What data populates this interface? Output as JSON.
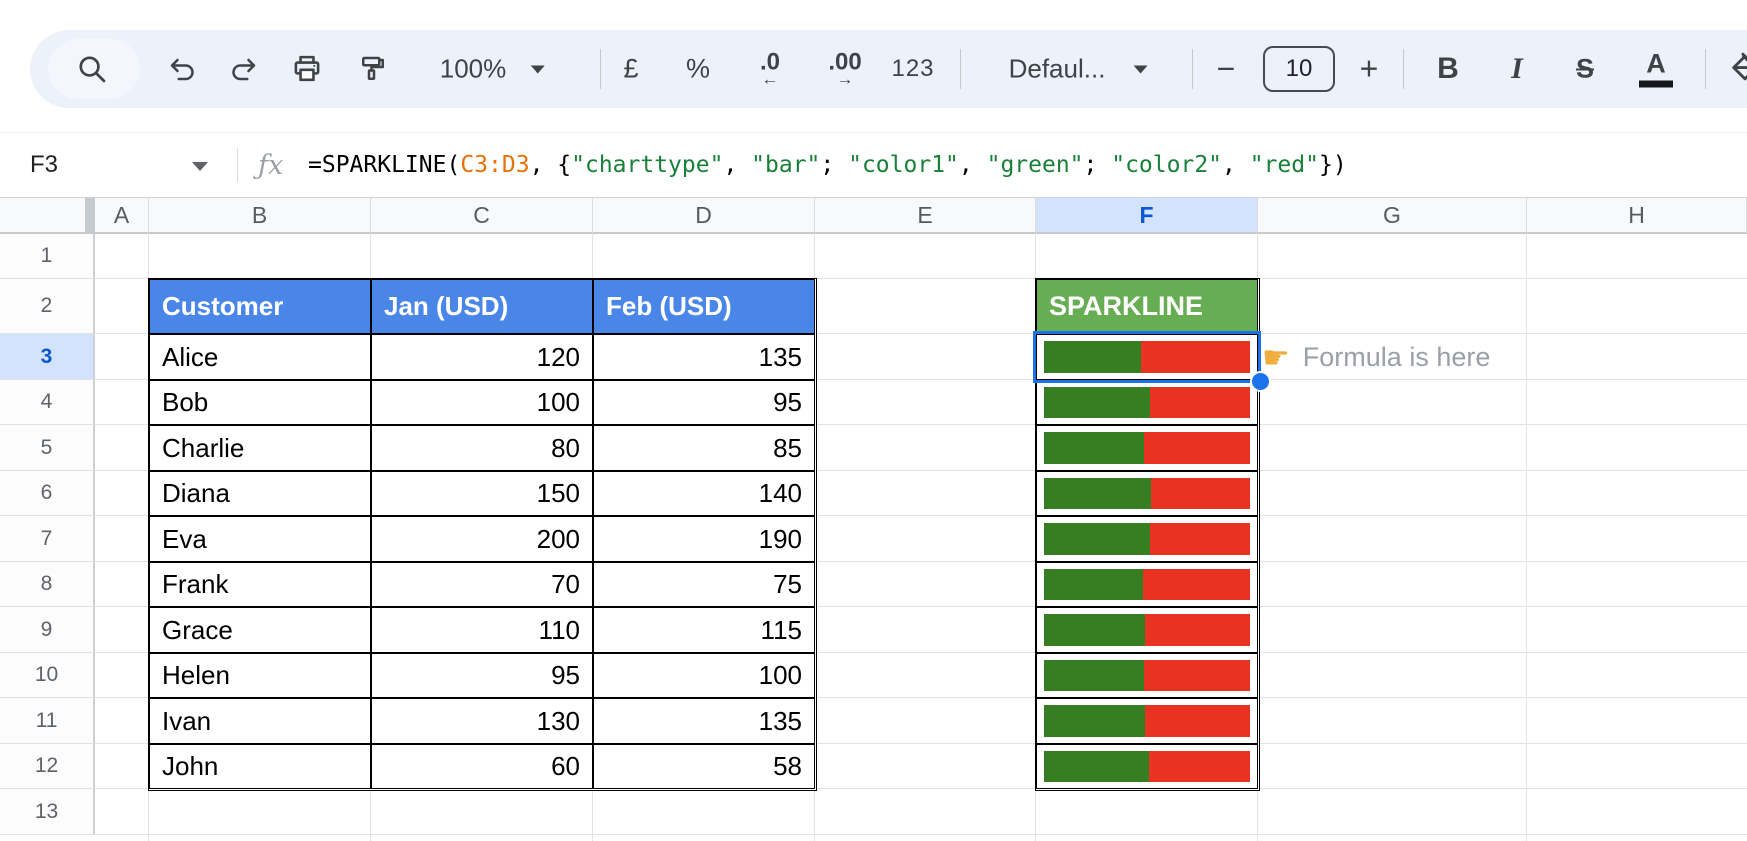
{
  "toolbar": {
    "zoom": {
      "label": "100%"
    },
    "format_currency": "£",
    "format_percent": "%",
    "decimal_decrease": {
      "label": ".0",
      "arrow": "←"
    },
    "decimal_increase": {
      "label": ".00",
      "arrow": "→"
    },
    "more_formats": "123",
    "font_family": "Defaul...",
    "font_size": {
      "decrease": "−",
      "value": "10",
      "increase": "+"
    },
    "bold": "B",
    "italic": "I",
    "strikethrough": "S",
    "text_color": "A"
  },
  "formula_bar": {
    "name_box": "F3",
    "fx": "ƒx",
    "segments": [
      {
        "text": "=SPARKLINE(",
        "type": "plain"
      },
      {
        "text": "C3:D3",
        "type": "range"
      },
      {
        "text": ", {",
        "type": "plain"
      },
      {
        "text": "\"charttype\"",
        "type": "string"
      },
      {
        "text": ", ",
        "type": "plain"
      },
      {
        "text": "\"bar\"",
        "type": "string"
      },
      {
        "text": "; ",
        "type": "plain"
      },
      {
        "text": "\"color1\"",
        "type": "string"
      },
      {
        "text": ", ",
        "type": "plain"
      },
      {
        "text": "\"green\"",
        "type": "string"
      },
      {
        "text": "; ",
        "type": "plain"
      },
      {
        "text": "\"color2\"",
        "type": "string"
      },
      {
        "text": ", ",
        "type": "plain"
      },
      {
        "text": "\"red\"",
        "type": "string"
      },
      {
        "text": "})",
        "type": "plain"
      }
    ]
  },
  "grid": {
    "column_headers": [
      "A",
      "B",
      "C",
      "D",
      "E",
      "F",
      "G",
      "H"
    ],
    "selected_column": "F",
    "row_headers": [
      "1",
      "2",
      "3",
      "4",
      "5",
      "6",
      "7",
      "8",
      "9",
      "10",
      "11",
      "12",
      "13"
    ],
    "selected_row": "3",
    "selected_cell": "F3"
  },
  "table": {
    "headers": [
      "Customer",
      "Jan (USD)",
      "Feb (USD)"
    ],
    "rows": [
      {
        "customer": "Alice",
        "jan": 120,
        "feb": 135
      },
      {
        "customer": "Bob",
        "jan": 100,
        "feb": 95
      },
      {
        "customer": "Charlie",
        "jan": 80,
        "feb": 85
      },
      {
        "customer": "Diana",
        "jan": 150,
        "feb": 140
      },
      {
        "customer": "Eva",
        "jan": 200,
        "feb": 190
      },
      {
        "customer": "Frank",
        "jan": 70,
        "feb": 75
      },
      {
        "customer": "Grace",
        "jan": 110,
        "feb": 115
      },
      {
        "customer": "Helen",
        "jan": 95,
        "feb": 100
      },
      {
        "customer": "Ivan",
        "jan": 130,
        "feb": 135
      },
      {
        "customer": "John",
        "jan": 60,
        "feb": 58
      }
    ]
  },
  "sparkline_column": {
    "header": "SPARKLINE",
    "bar_green": "#377e22",
    "bar_red": "#e83323"
  },
  "annotation": {
    "icon_char": "☛",
    "text": "Formula is here"
  },
  "colors": {
    "table_header_blue": "#4a86e8",
    "sparkline_header_green": "#67ad53",
    "selection_blue": "#1a73e8",
    "selected_header_bg": "#d3e3fd",
    "selected_header_text": "#0b57d0",
    "formula_range": "#e8710a",
    "formula_string": "#188038",
    "formula_plain": "#000000"
  }
}
